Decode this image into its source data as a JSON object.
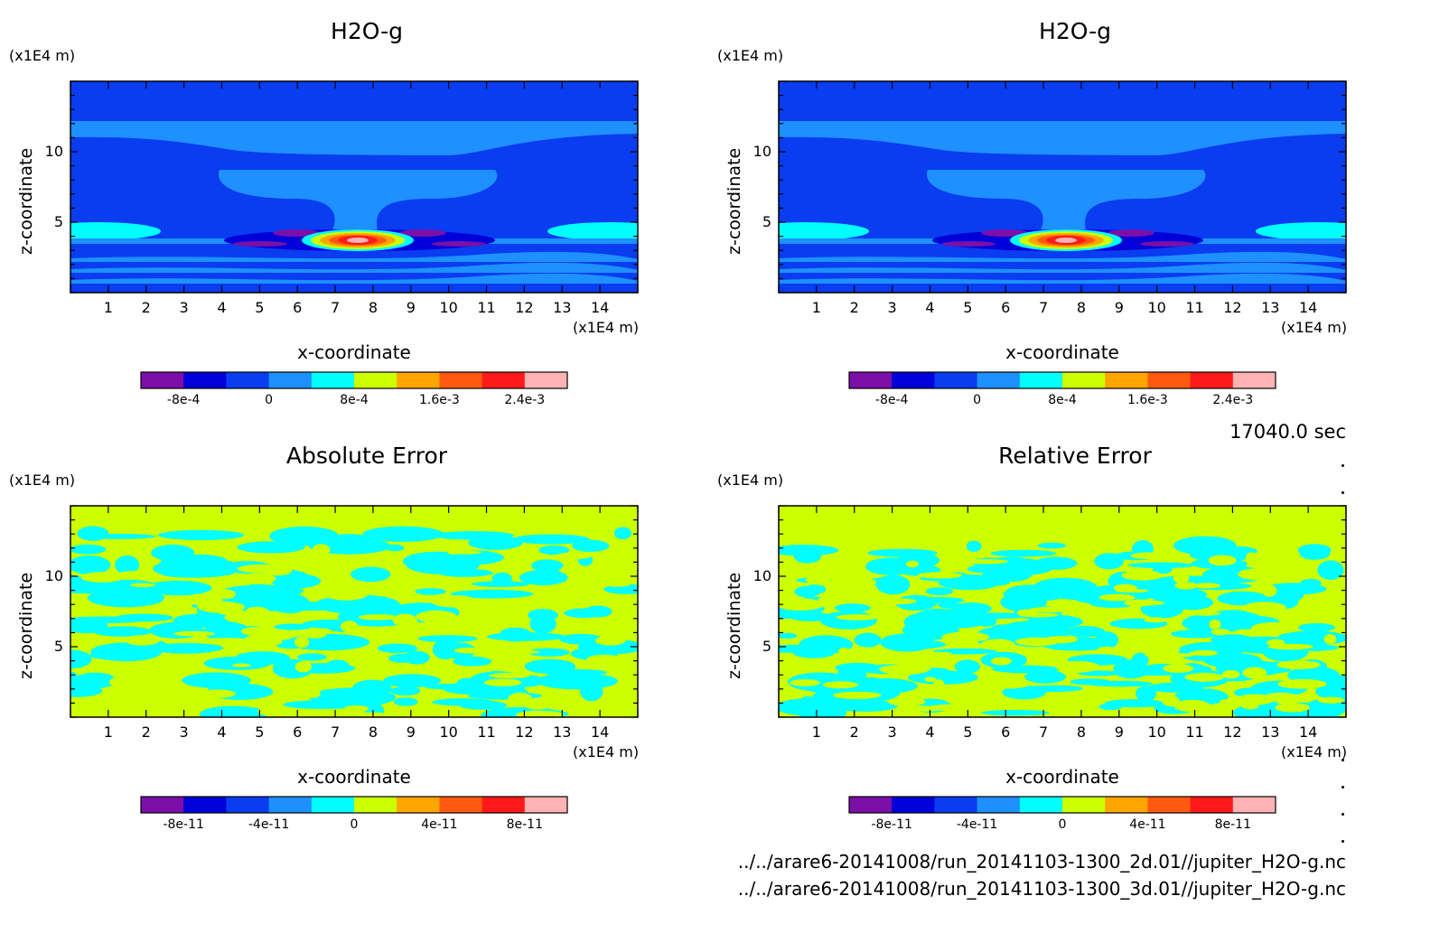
{
  "chart_data": [
    {
      "type": "heatmap",
      "title": "H2O-g",
      "xlabel": "x-coordinate",
      "ylabel": "z-coordinate",
      "x_unit": "(x1E4 m)",
      "y_unit": "(x1E4 m)",
      "xlim": [
        0,
        15
      ],
      "ylim": [
        0,
        15
      ],
      "x_ticks": [
        "1",
        "2",
        "3",
        "4",
        "5",
        "6",
        "7",
        "8",
        "9",
        "10",
        "11",
        "12",
        "13",
        "14"
      ],
      "y_ticks": [
        "5",
        "10"
      ],
      "colorbar": {
        "ticks": [
          "-8e-4",
          "0",
          "8e-4",
          "1.6e-3",
          "2.4e-3"
        ],
        "min": -0.0012,
        "max": 0.0028
      },
      "pattern": "field"
    },
    {
      "type": "heatmap",
      "title": "H2O-g",
      "xlabel": "x-coordinate",
      "ylabel": "z-coordinate",
      "x_unit": "(x1E4 m)",
      "y_unit": "(x1E4 m)",
      "xlim": [
        0,
        15
      ],
      "ylim": [
        0,
        15
      ],
      "x_ticks": [
        "1",
        "2",
        "3",
        "4",
        "5",
        "6",
        "7",
        "8",
        "9",
        "10",
        "11",
        "12",
        "13",
        "14"
      ],
      "y_ticks": [
        "5",
        "10"
      ],
      "colorbar": {
        "ticks": [
          "-8e-4",
          "0",
          "8e-4",
          "1.6e-3",
          "2.4e-3"
        ],
        "min": -0.0012,
        "max": 0.0028
      },
      "pattern": "field"
    },
    {
      "type": "heatmap",
      "title": "Absolute Error",
      "xlabel": "x-coordinate",
      "ylabel": "z-coordinate",
      "x_unit": "(x1E4 m)",
      "y_unit": "(x1E4 m)",
      "xlim": [
        0,
        15
      ],
      "ylim": [
        0,
        15
      ],
      "x_ticks": [
        "1",
        "2",
        "3",
        "4",
        "5",
        "6",
        "7",
        "8",
        "9",
        "10",
        "11",
        "12",
        "13",
        "14"
      ],
      "y_ticks": [
        "5",
        "10"
      ],
      "colorbar": {
        "ticks": [
          "-8e-11",
          "-4e-11",
          "0",
          "4e-11",
          "8e-11"
        ],
        "min": -1e-10,
        "max": 1e-10
      },
      "pattern": "noise"
    },
    {
      "type": "heatmap",
      "title": "Relative Error",
      "xlabel": "x-coordinate",
      "ylabel": "z-coordinate",
      "x_unit": "(x1E4 m)",
      "y_unit": "(x1E4 m)",
      "xlim": [
        0,
        15
      ],
      "ylim": [
        0,
        15
      ],
      "x_ticks": [
        "1",
        "2",
        "3",
        "4",
        "5",
        "6",
        "7",
        "8",
        "9",
        "10",
        "11",
        "12",
        "13",
        "14"
      ],
      "y_ticks": [
        "5",
        "10"
      ],
      "colorbar": {
        "ticks": [
          "-8e-11",
          "-4e-11",
          "0",
          "4e-11",
          "8e-11"
        ],
        "min": -1e-10,
        "max": 1e-10
      },
      "pattern": "noise"
    }
  ],
  "colors": {
    "palette": [
      "#7b0fa8",
      "#0000d8",
      "#0a3cf0",
      "#1e90ff",
      "#00ffff",
      "#ccff00",
      "#ffa500",
      "#ff5a10",
      "#ff1a1a",
      "#ffb3b3"
    ],
    "field_background": "#0a3cf0",
    "field_band": "#1e90ff",
    "noise_a": "#ccff00",
    "noise_b": "#00ffff"
  },
  "annotations": {
    "time": "17040.0 sec",
    "files": [
      "../../arare6-20141008/run_20141103-1300_2d.01//jupiter_H2O-g.nc",
      "../../arare6-20141008/run_20141103-1300_3d.01//jupiter_H2O-g.nc"
    ]
  }
}
